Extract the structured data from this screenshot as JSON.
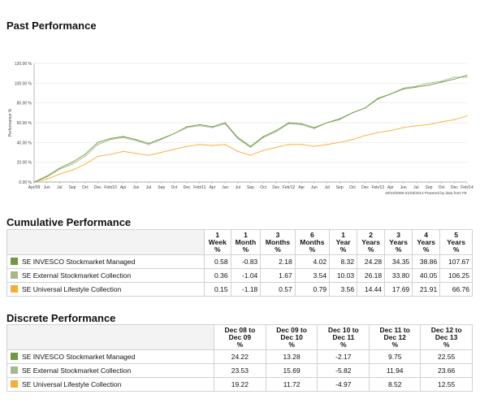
{
  "page": {
    "title": "Past Performance"
  },
  "colors": {
    "series1": "#6e9a3e",
    "series2": "#a7b98a",
    "series3": "#f6ad33",
    "border": "#d2d2d2"
  },
  "chart_data": {
    "type": "line",
    "title": "",
    "ylabel": "Performance %",
    "xlabel": "",
    "ylim": [
      0,
      120
    ],
    "yticks": [
      "0.00 %",
      "20.00 %",
      "40.00 %",
      "60.00 %",
      "80.00 %",
      "100.00 %",
      "120.00 %"
    ],
    "xticks": [
      "Apr/09",
      "Jun",
      "Jul",
      "Sep",
      "Oct",
      "Dec",
      "Feb/10",
      "Apr",
      "Jun",
      "Jul",
      "Sep",
      "Oct",
      "Dec",
      "Feb/11",
      "Apr",
      "Jun",
      "Jul",
      "Sep",
      "Oct",
      "Dec",
      "Feb/12",
      "Apr",
      "Jun",
      "Jul",
      "Sep",
      "Oct",
      "Dec",
      "Feb/13",
      "Apr",
      "Jun",
      "Jul",
      "Sep",
      "Oct",
      "Dec",
      "Feb/14"
    ],
    "footnote": "20/03/2009-21/03/2014 Powered by data from FE",
    "grid": true,
    "x": [
      0,
      1,
      2,
      3,
      4,
      5,
      6,
      7,
      8,
      9,
      10,
      11,
      12,
      13,
      14,
      15,
      16,
      17,
      18,
      19,
      20,
      21,
      22,
      23,
      24,
      25,
      26,
      27,
      28,
      29,
      30,
      31,
      32,
      33,
      34
    ],
    "series": [
      {
        "name": "SE INVESCO Stockmarket Managed",
        "values": [
          0,
          6,
          14,
          20,
          28,
          40,
          44,
          46,
          43,
          39,
          44,
          49,
          56,
          58,
          56,
          60,
          45,
          36,
          46,
          52,
          60,
          59,
          55,
          60,
          64,
          70,
          75,
          84,
          89,
          94,
          96,
          98,
          101,
          104,
          108
        ]
      },
      {
        "name": "SE External Stockmarket Collection",
        "values": [
          0,
          5,
          13,
          18,
          26,
          38,
          43,
          45,
          42,
          38,
          43,
          49,
          55,
          57,
          55,
          59,
          44,
          35,
          45,
          51,
          59,
          58,
          54,
          60,
          63,
          70,
          75,
          85,
          89,
          95,
          97,
          100,
          102,
          106,
          106
        ]
      },
      {
        "name": "SE Universal Lifestyle Collection",
        "values": [
          0,
          3,
          8,
          12,
          18,
          26,
          28,
          31,
          29,
          27,
          30,
          33,
          36,
          38,
          37,
          38,
          31,
          27,
          32,
          35,
          38,
          38,
          36,
          38,
          40,
          43,
          47,
          50,
          52,
          55,
          57,
          58,
          61,
          63,
          67
        ]
      }
    ]
  },
  "cumulative": {
    "title": "Cumulative Performance",
    "headers": [
      "1 Week %",
      "1 Month %",
      "3 Months %",
      "6 Months %",
      "1 Year %",
      "2 Years %",
      "3 Years %",
      "4 Years %",
      "5 Years %"
    ],
    "header_lines": [
      [
        "1",
        "Week",
        "%"
      ],
      [
        "1",
        "Month",
        "%"
      ],
      [
        "3",
        "Months",
        "%"
      ],
      [
        "6",
        "Months",
        "%"
      ],
      [
        "1",
        "Year",
        "%"
      ],
      [
        "2",
        "Years",
        "%"
      ],
      [
        "3",
        "Years",
        "%"
      ],
      [
        "4",
        "Years",
        "%"
      ],
      [
        "5",
        "Years",
        "%"
      ]
    ],
    "rows": [
      {
        "name": "SE INVESCO Stockmarket Managed",
        "values": [
          "0.58",
          "-0.83",
          "2.18",
          "4.02",
          "8.32",
          "24.28",
          "34.35",
          "38.86",
          "107.67"
        ]
      },
      {
        "name": "SE External Stockmarket Collection",
        "values": [
          "0.36",
          "-1.04",
          "1.67",
          "3.54",
          "10.03",
          "26.18",
          "33.80",
          "40.05",
          "106.25"
        ]
      },
      {
        "name": "SE Universal Lifestyle Collection",
        "values": [
          "0.15",
          "-1.18",
          "0.57",
          "0.79",
          "3.56",
          "14.44",
          "17.69",
          "21.91",
          "66.76"
        ]
      }
    ]
  },
  "discrete": {
    "title": "Discrete Performance",
    "header_lines": [
      [
        "Dec 08 to",
        "Dec 09",
        "%"
      ],
      [
        "Dec 09 to",
        "Dec 10",
        "%"
      ],
      [
        "Dec 10 to",
        "Dec 11",
        "%"
      ],
      [
        "Dec 11 to",
        "Dec 12",
        "%"
      ],
      [
        "Dec 12 to",
        "Dec 13",
        "%"
      ]
    ],
    "rows": [
      {
        "name": "SE INVESCO Stockmarket Managed",
        "values": [
          "24.22",
          "13.28",
          "-2.17",
          "9.75",
          "22.55"
        ]
      },
      {
        "name": "SE External Stockmarket Collection",
        "values": [
          "23.53",
          "15.69",
          "-5.82",
          "11.94",
          "23.66"
        ]
      },
      {
        "name": "SE Universal Lifestyle Collection",
        "values": [
          "19.22",
          "11.72",
          "-4.97",
          "8.52",
          "12.55"
        ]
      }
    ]
  }
}
